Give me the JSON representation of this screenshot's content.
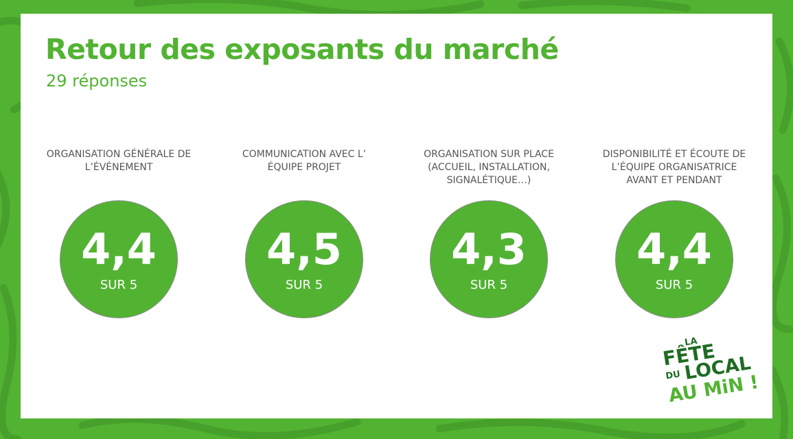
{
  "page": {
    "accent": "#52b332",
    "logo_dark": "#1f6b22"
  },
  "header": {
    "title": "Retour des exposants du marché",
    "subtitle": "29 réponses"
  },
  "metrics": [
    {
      "label": "ORGANISATION GÉNÉRALE DE L’ÉVÉNEMENT",
      "score": "4,4",
      "scale": "SUR 5"
    },
    {
      "label": "COMMUNICATION AVEC L’ ÉQUIPE PROJET",
      "score": "4,5",
      "scale": "SUR 5"
    },
    {
      "label": "ORGANISATION SUR PLACE (ACCUEIL, INSTALLATION, SIGNALÉTIQUE…)",
      "score": "4,3",
      "scale": "SUR 5"
    },
    {
      "label": "DISPONIBILITÉ ET ÉCOUTE DE L’ÉQUIPE ORGANISATRICE AVANT ET PENDANT",
      "score": "4,4",
      "scale": "SUR 5"
    }
  ],
  "logo": {
    "line1": "LA",
    "line2": "FÊTE",
    "line3": "DU",
    "line4": "LOCAL",
    "line5": "AU MiN !"
  }
}
